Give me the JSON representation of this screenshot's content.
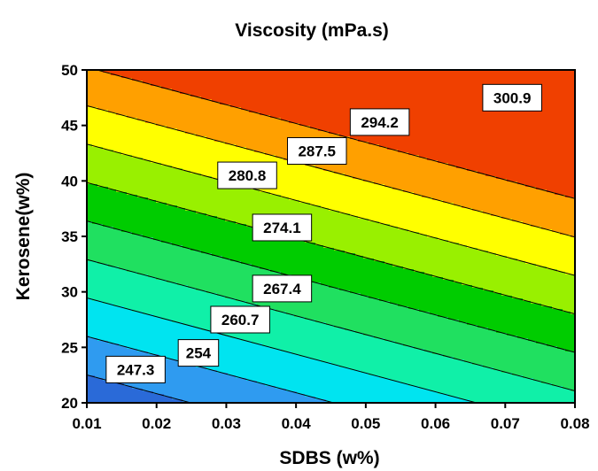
{
  "chart_data": {
    "type": "contour",
    "title": "Viscosity (mPa.s)",
    "xlabel": "SDBS (w%)",
    "ylabel": "Kerosene(w%)",
    "xlim": [
      0.01,
      0.08
    ],
    "ylim": [
      20,
      50
    ],
    "xticks": [
      "0.01",
      "0.02",
      "0.03",
      "0.04",
      "0.05",
      "0.06",
      "0.07",
      "0.08"
    ],
    "yticks": [
      "20",
      "25",
      "30",
      "35",
      "40",
      "45",
      "50"
    ],
    "surface_fit": {
      "intercept": 200.5,
      "coef_x": 327.0,
      "coef_y": 1.933
    },
    "contour_levels": [
      247.3,
      254,
      260.7,
      267.4,
      274.1,
      280.8,
      287.5,
      294.2,
      300.9
    ],
    "contour_labels": [
      {
        "text": "247.3",
        "x": 0.017,
        "y": 23.0
      },
      {
        "text": "254",
        "x": 0.026,
        "y": 24.5
      },
      {
        "text": "260.7",
        "x": 0.032,
        "y": 27.5
      },
      {
        "text": "267.4",
        "x": 0.038,
        "y": 30.3
      },
      {
        "text": "274.1",
        "x": 0.038,
        "y": 35.8
      },
      {
        "text": "280.8",
        "x": 0.033,
        "y": 40.5
      },
      {
        "text": "287.5",
        "x": 0.043,
        "y": 42.7
      },
      {
        "text": "294.2",
        "x": 0.052,
        "y": 45.3
      },
      {
        "text": "300.9",
        "x": 0.071,
        "y": 47.5
      }
    ],
    "band_colors": [
      "#2a6ad8",
      "#2f9bf0",
      "#00e4f0",
      "#10f0a8",
      "#20e060",
      "#00cc00",
      "#99f000",
      "#ffff00",
      "#ffa000",
      "#f04000"
    ]
  }
}
